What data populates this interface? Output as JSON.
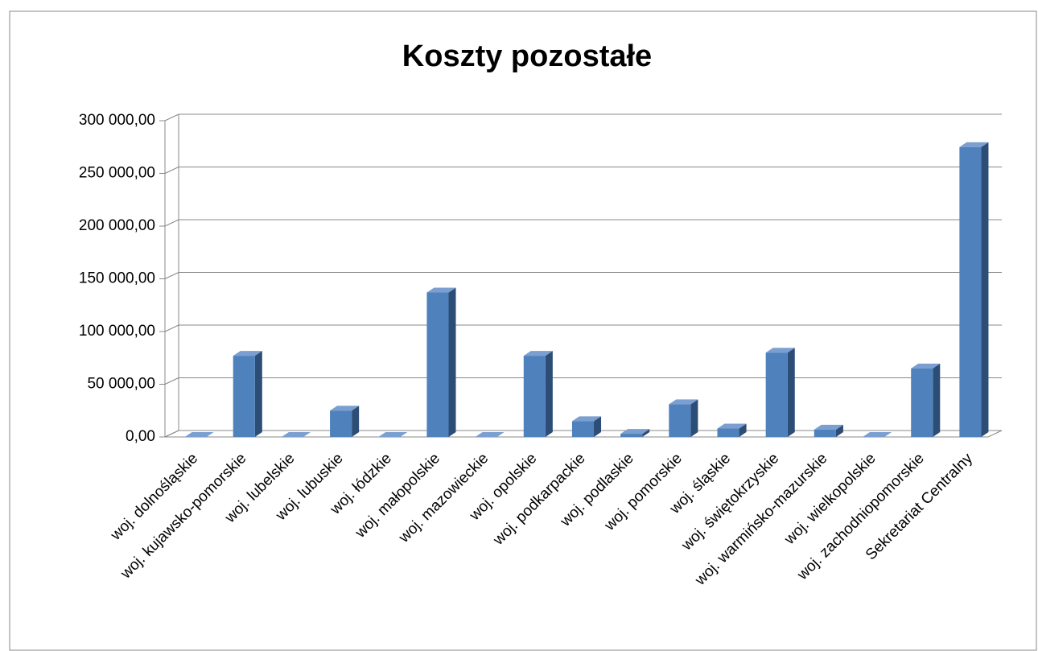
{
  "chart_data": {
    "type": "bar3d",
    "title": "Koszty pozostałe",
    "categories": [
      "woj. dolnośląskie",
      "woj. kujawsko-pomorskie",
      "woj. lubelskie",
      "woj. lubuskie",
      "woj. łódzkie",
      "woj. małopolskie",
      "woj. mazowieckie",
      "woj. opolskie",
      "woj. podkarpackie",
      "woj. podlaskie",
      "woj. pomorskie",
      "woj. śląskie",
      "woj. świętokrzyskie",
      "woj. warmińsko-mazurskie",
      "woj. wielkopolskie",
      "woj. zachodniopomorskie",
      "Sekretariat Centralny"
    ],
    "values": [
      0,
      77000,
      0,
      25000,
      0,
      137000,
      0,
      77000,
      15000,
      3000,
      31000,
      8000,
      80000,
      7000,
      0,
      65000,
      275000
    ],
    "color": "#4f81bd",
    "ylim": [
      0,
      300000
    ],
    "yticks": [
      {
        "value": 0,
        "label": "0,00"
      },
      {
        "value": 50000,
        "label": "50 000,00"
      },
      {
        "value": 100000,
        "label": "100 000,00"
      },
      {
        "value": 150000,
        "label": "150 000,00"
      },
      {
        "value": 200000,
        "label": "200 000,00"
      },
      {
        "value": 250000,
        "label": "250 000,00"
      },
      {
        "value": 300000,
        "label": "300 000,00"
      }
    ],
    "grid": true
  }
}
